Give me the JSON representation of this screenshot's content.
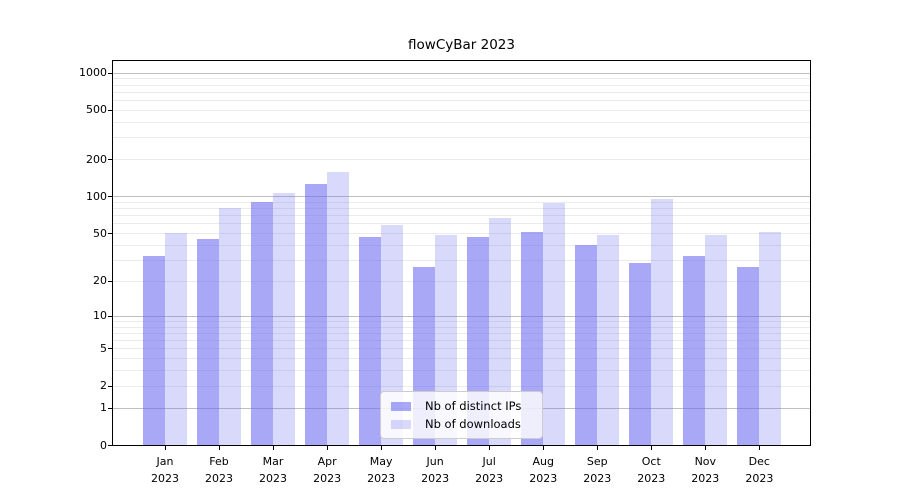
{
  "chart_data": {
    "type": "bar",
    "title": "flowCyBar 2023",
    "categories": [
      "Jan",
      "Feb",
      "Mar",
      "Apr",
      "May",
      "Jun",
      "Jul",
      "Aug",
      "Sep",
      "Oct",
      "Nov",
      "Dec"
    ],
    "x_year_label": "2023",
    "series": [
      {
        "name": "Nb of distinct IPs",
        "color": "rgba(105,105,240,0.58)",
        "values": [
          32,
          45,
          90,
          126,
          46,
          26,
          46,
          51,
          40,
          28,
          32,
          26
        ]
      },
      {
        "name": "Nb of downloads",
        "color": "rgba(105,105,240,0.25)",
        "values": [
          50,
          80,
          106,
          158,
          58,
          48,
          66,
          88,
          48,
          94,
          48,
          51
        ]
      }
    ],
    "y_axis": {
      "scale": "log-like (plotted as log10(1+v))",
      "ticks": [
        0,
        1,
        2,
        5,
        10,
        20,
        50,
        100,
        200,
        500,
        1000
      ],
      "major_grid_values": [
        1,
        10,
        100,
        1000
      ],
      "ylim": [
        0,
        1235
      ]
    },
    "legend": {
      "position": "lower center",
      "items": [
        "Nb of distinct IPs",
        "Nb of downloads"
      ]
    },
    "grid": true
  },
  "colors": {
    "background": "#ffffff",
    "spine": "#000000",
    "text": "#000000",
    "grid_major": "#bfbfbf",
    "grid_minor": "#ebebeb",
    "legend_border": "#cccccc",
    "legend_bg": "rgba(255,255,255,0.8)",
    "bar_dark": "rgba(105,105,240,0.58)",
    "bar_light": "rgba(105,105,240,0.25)"
  }
}
